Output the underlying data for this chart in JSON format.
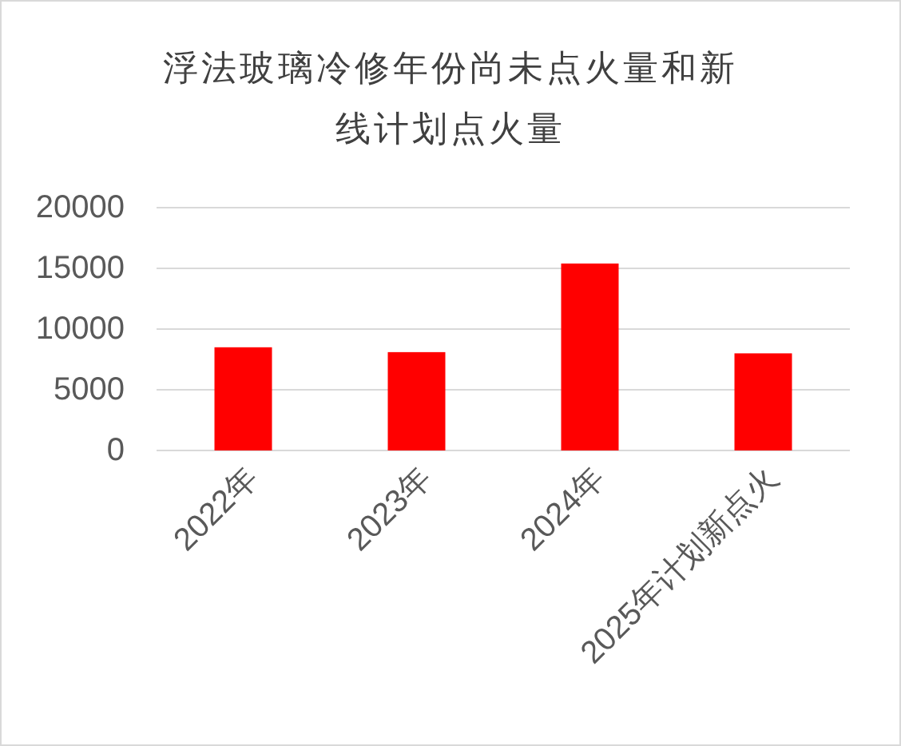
{
  "chart_data": {
    "type": "bar",
    "title": "浮法玻璃冷修年份尚未点火量和新线计划点火量",
    "categories": [
      "2022年",
      "2023年",
      "2024年",
      "2025年计划新点火"
    ],
    "values": [
      8500,
      8100,
      15400,
      8000
    ],
    "color": "#ff0000",
    "ylim": [
      0,
      20000
    ],
    "yticks": [
      0,
      5000,
      10000,
      15000,
      20000
    ],
    "grid": "y"
  }
}
